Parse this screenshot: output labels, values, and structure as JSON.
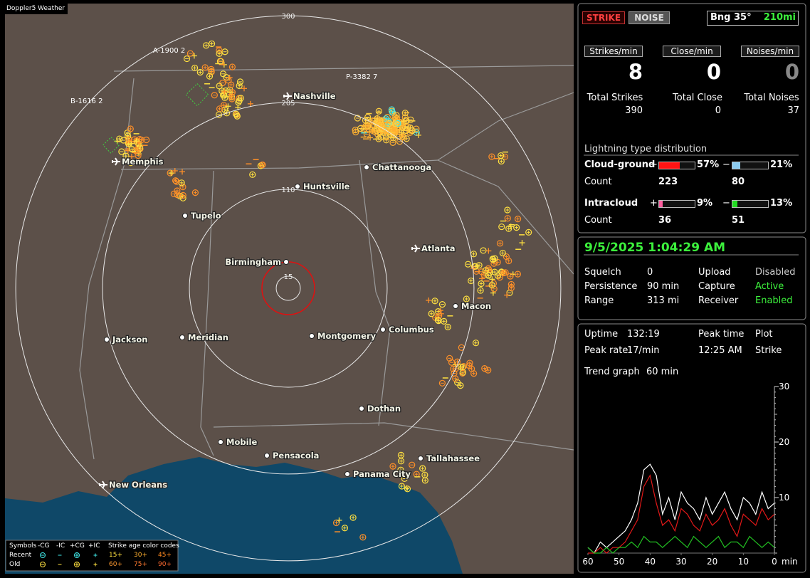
{
  "app_title": "Doppler5 Weather",
  "map": {
    "range_rings": [
      15,
      110,
      205,
      300
    ],
    "cities": [
      "Nashville",
      "Memphis",
      "Chattanooga",
      "Huntsville",
      "Tupelo",
      "Atlanta",
      "Birmingham",
      "Macon",
      "Jackson",
      "Meridian",
      "Montgomery",
      "Columbus",
      "Dothan",
      "Mobile",
      "Pensacola",
      "Panama City",
      "Tallahassee",
      "New Orleans"
    ],
    "storm_tags": [
      "A-1900 2",
      "B-1616 2",
      "P-3382 7"
    ]
  },
  "legend": {
    "symbols_title": "Symbols",
    "columns": [
      "-CG",
      "-IC",
      "+CG",
      "+IC"
    ],
    "age_title": "Strike age color codes",
    "rows": [
      {
        "name": "Recent",
        "ages": [
          "15+",
          "30+",
          "45+"
        ]
      },
      {
        "name": "Old",
        "ages": [
          "60+",
          "75+",
          "90+"
        ]
      }
    ]
  },
  "status": {
    "strike": "STRIKE",
    "noise": "NOISE",
    "bearing": "Bng 35°",
    "distance": "210mi"
  },
  "rates": [
    {
      "label": "Strikes/min",
      "value": 8
    },
    {
      "label": "Close/min",
      "value": 0
    },
    {
      "label": "Noises/min",
      "value": 0
    }
  ],
  "totals": [
    {
      "label": "Total Strikes",
      "value": 390
    },
    {
      "label": "Total Close",
      "value": 0
    },
    {
      "label": "Total Noises",
      "value": 37
    }
  ],
  "distribution": {
    "title": "Lightning type distribution",
    "count_label": "Count",
    "rows": [
      {
        "name": "Cloud-ground",
        "plus": {
          "sign": "+",
          "percent": 57,
          "percent_label": "57%",
          "count": 223,
          "color": "#ff1414"
        },
        "minus": {
          "sign": "−",
          "percent": 21,
          "percent_label": "21%",
          "count": 80,
          "color": "#8cccf0"
        }
      },
      {
        "name": "Intracloud",
        "plus": {
          "sign": "+",
          "percent": 9,
          "percent_label": "9%",
          "count": 36,
          "color": "#ff5fa0"
        },
        "minus": {
          "sign": "−",
          "percent": 13,
          "percent_label": "13%",
          "count": 51,
          "color": "#22dd22"
        }
      }
    ]
  },
  "clock": "9/5/2025 1:04:29 AM",
  "settings": [
    [
      "Squelch",
      "0",
      "Upload",
      "Disabled"
    ],
    [
      "Persistence",
      "90 min",
      "Capture",
      "Active"
    ],
    [
      "Range",
      "313 mi",
      "Receiver",
      "Enabled"
    ]
  ],
  "stats": [
    [
      "Uptime",
      "132:19",
      "Peak time",
      "Plot"
    ],
    [
      "Peak rate",
      "17/min",
      "12:25 AM",
      "Strike"
    ]
  ],
  "trend": {
    "label": "Trend graph",
    "window": "60 min",
    "x_unit": "min",
    "x": [
      60,
      58,
      56,
      54,
      52,
      50,
      48,
      46,
      44,
      42,
      40,
      38,
      36,
      34,
      32,
      30,
      28,
      26,
      24,
      22,
      20,
      18,
      16,
      14,
      12,
      10,
      8,
      6,
      4,
      2,
      0
    ],
    "xlim": [
      60,
      0
    ],
    "ylim": [
      0,
      30
    ],
    "xticks": [
      60,
      50,
      40,
      30,
      20,
      10,
      0
    ],
    "yticks": [
      10,
      20,
      30
    ],
    "series": [
      {
        "color": "#ffffff",
        "values": [
          1,
          0,
          2,
          1,
          2,
          3,
          4,
          6,
          9,
          15,
          16,
          14,
          7,
          10,
          6,
          11,
          9,
          8,
          6,
          10,
          7,
          9,
          11,
          8,
          6,
          10,
          9,
          7,
          11,
          8,
          9
        ]
      },
      {
        "color": "#e01818",
        "values": [
          0,
          0,
          1,
          0,
          1,
          1,
          2,
          4,
          6,
          12,
          14,
          9,
          5,
          6,
          4,
          8,
          7,
          5,
          4,
          7,
          5,
          6,
          8,
          5,
          3,
          7,
          6,
          5,
          8,
          6,
          7
        ]
      },
      {
        "color": "#22c022",
        "values": [
          1,
          0,
          0,
          1,
          0,
          1,
          1,
          2,
          1,
          3,
          2,
          2,
          1,
          2,
          3,
          2,
          1,
          3,
          2,
          1,
          2,
          3,
          1,
          2,
          2,
          1,
          3,
          2,
          1,
          2,
          1
        ]
      }
    ]
  }
}
